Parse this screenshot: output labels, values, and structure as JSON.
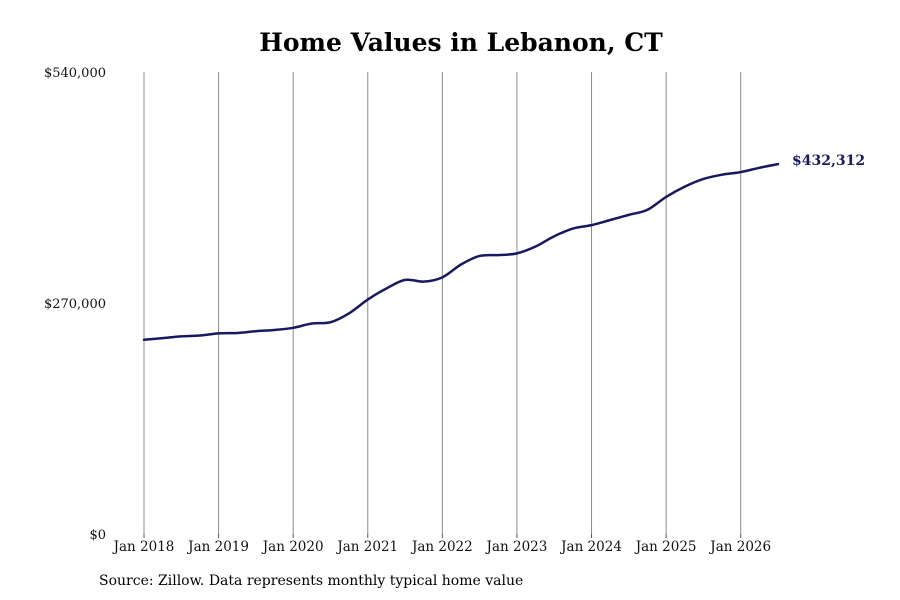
{
  "chart_data": {
    "type": "line",
    "title": "Home Values in Lebanon, CT",
    "xlabel": "",
    "ylabel": "",
    "x_range": [
      "2018-01",
      "2026-07"
    ],
    "ylim": [
      0,
      540000
    ],
    "y_ticks": [
      {
        "value": 0,
        "label": "$0"
      },
      {
        "value": 270000,
        "label": "$270,000"
      },
      {
        "value": 540000,
        "label": "$540,000"
      }
    ],
    "x_ticks": [
      {
        "date": "2018-01",
        "label": "Jan 2018"
      },
      {
        "date": "2019-01",
        "label": "Jan 2019"
      },
      {
        "date": "2020-01",
        "label": "Jan 2020"
      },
      {
        "date": "2021-01",
        "label": "Jan 2021"
      },
      {
        "date": "2022-01",
        "label": "Jan 2022"
      },
      {
        "date": "2023-01",
        "label": "Jan 2023"
      },
      {
        "date": "2024-01",
        "label": "Jan 2024"
      },
      {
        "date": "2025-01",
        "label": "Jan 2025"
      },
      {
        "date": "2026-01",
        "label": "Jan 2026"
      }
    ],
    "grid": {
      "vertical": true,
      "horizontal": false
    },
    "line_color": "#191962",
    "series": [
      {
        "points": [
          [
            "2018-01",
            227000
          ],
          [
            "2018-04",
            229000
          ],
          [
            "2018-07",
            231000
          ],
          [
            "2018-10",
            232000
          ],
          [
            "2019-01",
            234500
          ],
          [
            "2019-04",
            235000
          ],
          [
            "2019-07",
            237000
          ],
          [
            "2019-10",
            238500
          ],
          [
            "2020-01",
            241000
          ],
          [
            "2020-04",
            246000
          ],
          [
            "2020-07",
            247500
          ],
          [
            "2020-10",
            258000
          ],
          [
            "2021-01",
            274000
          ],
          [
            "2021-04",
            287000
          ],
          [
            "2021-07",
            297000
          ],
          [
            "2021-10",
            295000
          ],
          [
            "2022-01",
            300000
          ],
          [
            "2022-04",
            315000
          ],
          [
            "2022-07",
            325000
          ],
          [
            "2022-10",
            326000
          ],
          [
            "2023-01",
            328000
          ],
          [
            "2023-04",
            336000
          ],
          [
            "2023-07",
            348000
          ],
          [
            "2023-10",
            357000
          ],
          [
            "2024-01",
            361000
          ],
          [
            "2024-04",
            367000
          ],
          [
            "2024-07",
            373000
          ],
          [
            "2024-10",
            379000
          ],
          [
            "2025-01",
            394000
          ],
          [
            "2025-04",
            406000
          ],
          [
            "2025-07",
            415000
          ],
          [
            "2025-10",
            420000
          ],
          [
            "2026-01",
            423000
          ],
          [
            "2026-04",
            428000
          ],
          [
            "2026-07",
            432312
          ]
        ]
      }
    ],
    "end_label": "$432,312"
  },
  "source_note": "Source: Zillow. Data represents monthly typical home value"
}
